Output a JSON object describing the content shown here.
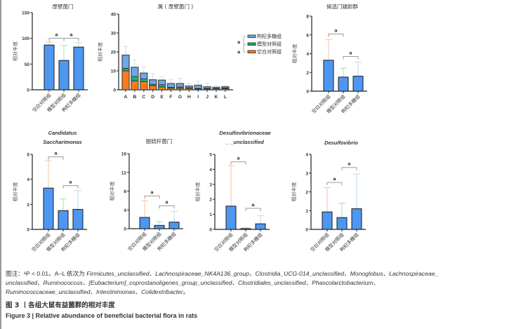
{
  "colors": {
    "bar_blue": "#4d97f0",
    "blank": "#ff7a1a",
    "model": "#1fae6a",
    "lbp": "#6aa9ec",
    "err_blank": "#f7c3a0",
    "err_model": "#9fe0c6",
    "err_lbp": "#b9d8f5",
    "bracket": "#999999"
  },
  "groups": [
    "空白对照组",
    "模型对照组",
    "枸杞多糖组"
  ],
  "chart_data": [
    {
      "type": "bar",
      "id": "firmicutes",
      "title": "厚壁菌门",
      "title_italic": false,
      "ylabel": "相对丰度",
      "categories": [
        "空白对照组",
        "模型对照组",
        "枸杞多糖组"
      ],
      "values": [
        87,
        57,
        83
      ],
      "errors": [
        6,
        29,
        9
      ],
      "ylim": [
        0,
        150
      ],
      "yticks": [
        0,
        50,
        100,
        150
      ],
      "brackets": [
        {
          "from": 0,
          "to": 1,
          "label": "a",
          "y": 100
        },
        {
          "from": 1,
          "to": 2,
          "label": "a",
          "y": 100
        }
      ]
    },
    {
      "type": "stacked-bar",
      "id": "genus",
      "title": "属 ( 厚壁菌门 )",
      "ylabel": "相对丰度",
      "categories": [
        "A",
        "B",
        "C",
        "D",
        "E",
        "F",
        "G",
        "H",
        "I",
        "J",
        "K",
        "L"
      ],
      "series": [
        {
          "name": "空白对照组",
          "values": [
            10.0,
            4.6,
            4.2,
            2.2,
            1.5,
            0.8,
            0.8,
            0.7,
            0.4,
            0.4,
            0.5,
            0.6
          ]
        },
        {
          "name": "模型对照组",
          "values": [
            1.3,
            2.4,
            1.5,
            0.7,
            1.2,
            0.5,
            0.7,
            0.4,
            0.3,
            0.3,
            0.2,
            0.3
          ]
        },
        {
          "name": "枸杞多糖组",
          "values": [
            7.0,
            4.9,
            3.1,
            2.4,
            2.4,
            2.0,
            1.8,
            0.9,
            1.7,
            0.9,
            0.6,
            0.7
          ]
        }
      ],
      "totals_error": [
        23,
        16,
        12,
        8.5,
        7,
        5.5,
        6,
        3.5,
        4.5,
        3.5,
        2,
        2.2
      ],
      "ylim": [
        0,
        40
      ],
      "yticks": [
        0,
        10,
        20,
        30,
        40
      ],
      "legend": {
        "placement": "right",
        "order": [
          "枸杞多糖组",
          "模型对照组",
          "空白对照组"
        ],
        "sig_labels": [
          "a",
          "a"
        ]
      }
    },
    {
      "type": "bar",
      "id": "candidate-phyla",
      "title": "候选门辐射群",
      "title_italic": false,
      "ylabel": "相对丰度",
      "categories": [
        "空白对照组",
        "模型对照组",
        "枸杞多糖组"
      ],
      "values": [
        3.3,
        1.5,
        1.6
      ],
      "errors": [
        2.2,
        0.95,
        1.5
      ],
      "ylim": [
        0,
        8
      ],
      "yticks": [
        0,
        2,
        4,
        6,
        8
      ],
      "brackets": [
        {
          "from": 0,
          "to": 1,
          "label": "a",
          "y": 6.1
        },
        {
          "from": 1,
          "to": 2,
          "label": "a",
          "y": 3.7
        }
      ]
    },
    {
      "type": "bar",
      "id": "saccharimonas",
      "title": "Candidatus",
      "title2": "Saccharimonas",
      "title_italic": true,
      "ylabel": "相对丰度",
      "categories": [
        "空白对照组",
        "模型对照组",
        "枸杞多糖组"
      ],
      "values": [
        3.3,
        1.5,
        1.6
      ],
      "errors": [
        2.2,
        0.95,
        1.5
      ],
      "ylim": [
        0,
        6
      ],
      "yticks": [
        0,
        2,
        4,
        6
      ],
      "brackets": [
        {
          "from": 0,
          "to": 1,
          "label": "a",
          "y": 5.8
        },
        {
          "from": 1,
          "to": 2,
          "label": "a",
          "y": 3.5
        }
      ]
    },
    {
      "type": "bar",
      "id": "desulfobacterota",
      "title": "脱硫杆菌门",
      "title_italic": false,
      "ylabel": "相对丰度",
      "categories": [
        "空白对照组",
        "模型对照组",
        "枸杞多糖组"
      ],
      "values": [
        2.4,
        0.7,
        1.4
      ],
      "errors": [
        3.6,
        0.8,
        2.3
      ],
      "ylim": [
        0,
        16
      ],
      "yticks": [
        0,
        4,
        8,
        12,
        16
      ],
      "brackets": [
        {
          "from": 0,
          "to": 1,
          "label": "a",
          "y": 7.0
        },
        {
          "from": 1,
          "to": 2,
          "label": "a",
          "y": 4.9
        }
      ]
    },
    {
      "type": "bar",
      "id": "desulfovibrionaceae",
      "title": "Desulfovibrionaceae",
      "title2": "_ _unclassified",
      "title_italic": true,
      "ylabel": "相对丰度",
      "categories": [
        "空白对照组",
        "模型对照组",
        "枸杞多糖组"
      ],
      "values": [
        1.55,
        0.05,
        0.37
      ],
      "errors": [
        2.7,
        0.07,
        0.55
      ],
      "ylim": [
        0,
        5
      ],
      "yticks": [
        0,
        1,
        2,
        3,
        4,
        5
      ],
      "brackets": [
        {
          "from": 0,
          "to": 1,
          "label": "a",
          "y": 4.5
        },
        {
          "from": 1,
          "to": 2,
          "label": "a",
          "y": 1.4
        }
      ]
    },
    {
      "type": "bar",
      "id": "desulfovibrio",
      "title": "Desulfovibrio",
      "title_italic": true,
      "ylabel": "相对丰度",
      "categories": [
        "空白对照组",
        "模型对照组",
        "枸杞多糖组"
      ],
      "values": [
        0.93,
        0.63,
        1.1
      ],
      "errors": [
        1.3,
        0.77,
        1.85
      ],
      "ylim": [
        0,
        4
      ],
      "yticks": [
        0,
        1,
        2,
        3,
        4
      ],
      "brackets": [
        {
          "from": 0,
          "to": 1,
          "label": "a",
          "y": 2.5
        },
        {
          "from": 1,
          "to": 2,
          "label": "a",
          "y": 3.3
        }
      ]
    }
  ],
  "caption": {
    "line1_prefix": "图注：",
    "line1_p": "ᵃP < 0.01。A–L 依次为 ",
    "line1_italic": "Firmicutes_unclassified、Lachnospiraceae_NK4A136_group、Clostridia_UCG-014_unclassified、Monoglobus、Lachnospiraceae_",
    "line2_italic": "unclassified、Ruminococcus、[Eubacterium]_coprostanoligenes_group_unclassified、Clostridiales_unclassified、Phascolarctobacterium、",
    "line3_italic": "Ruminococcaceae_unclassified、Intestinimonas、Colidextribacter。",
    "figure_title_cn": "图 3 丨各组大鼠有益菌群的相对丰度",
    "figure_title_en": "Figure 3  |  Relative abundance of beneficial bacterial flora in rats"
  }
}
